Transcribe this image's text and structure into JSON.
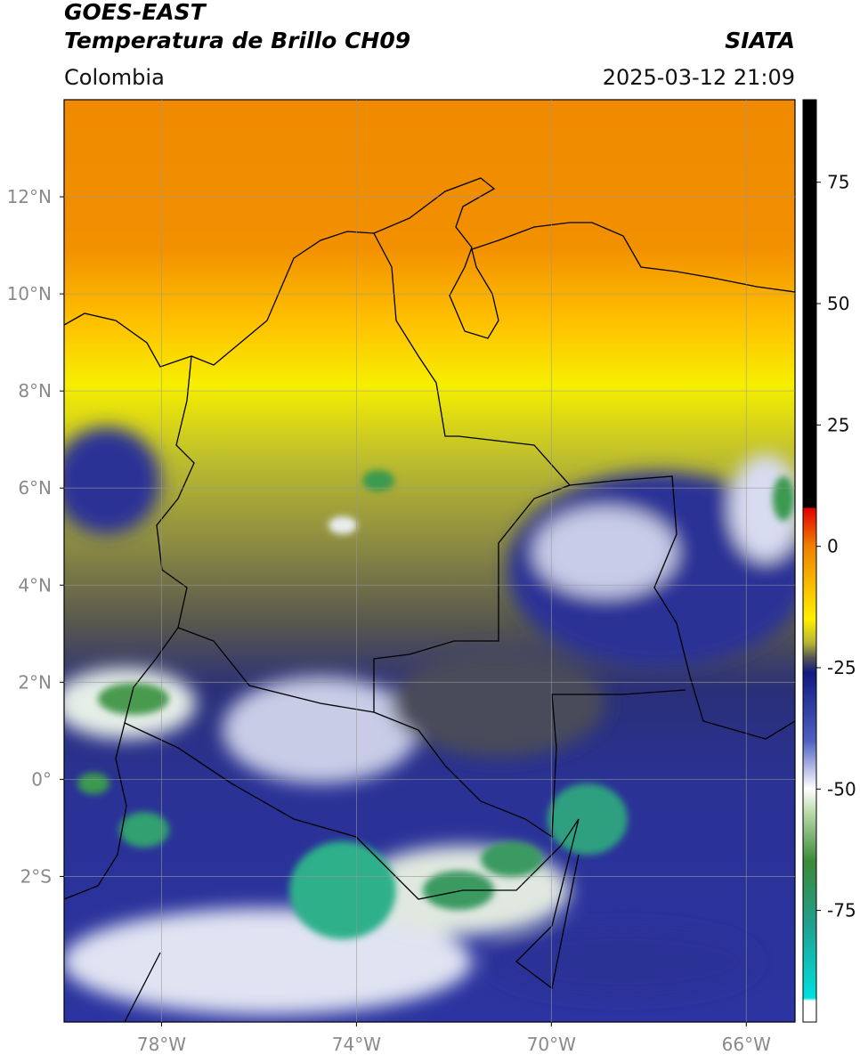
{
  "header": {
    "title": "GOES-EAST",
    "subtitle": "Temperatura de Brillo CH09",
    "source": "SIATA",
    "region": "Colombia",
    "datetime": "2025-03-12 21:09"
  },
  "map": {
    "xlim": [
      -80,
      -65
    ],
    "ylim": [
      -5,
      14
    ],
    "grid": true,
    "xticks": [
      {
        "value": -78,
        "label": "78°W"
      },
      {
        "value": -74,
        "label": "74°W"
      },
      {
        "value": -70,
        "label": "70°W"
      },
      {
        "value": -66,
        "label": "66°W"
      }
    ],
    "yticks": [
      {
        "value": 12,
        "label": "12°N"
      },
      {
        "value": 10,
        "label": "10°N"
      },
      {
        "value": 8,
        "label": "8°N"
      },
      {
        "value": 6,
        "label": "6°N"
      },
      {
        "value": 4,
        "label": "4°N"
      },
      {
        "value": 2,
        "label": "2°N"
      },
      {
        "value": 0,
        "label": "0°"
      },
      {
        "value": -2,
        "label": "2°S"
      }
    ]
  },
  "colorbar": {
    "lim": [
      -98,
      92
    ],
    "ticks": [
      75,
      50,
      25,
      0,
      -25,
      -50,
      -75
    ]
  }
}
